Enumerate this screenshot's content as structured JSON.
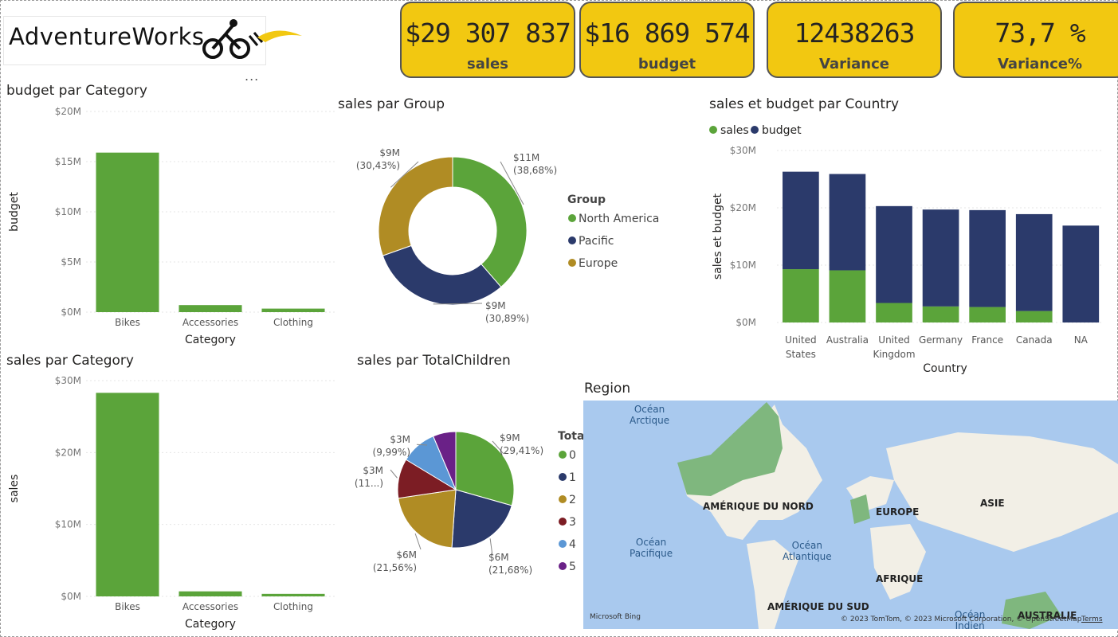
{
  "logo": {
    "text": "AdventureWorks",
    "menu": "..."
  },
  "kpis": [
    {
      "value": "$29 307 837",
      "label": "sales"
    },
    {
      "value": "$16 869 574",
      "label": "budget"
    },
    {
      "value": "12438263",
      "label": "Variance"
    },
    {
      "value": "73,7 %",
      "label": "Variance%"
    }
  ],
  "colors": {
    "green": "#5ba43a",
    "navy": "#2b3a6b",
    "gold": "#b08c24",
    "maroon": "#7c1d24",
    "lightblue": "#5b97d5",
    "purple": "#6a2187",
    "kpi": "#f2c811"
  },
  "titles": {
    "budget_cat": "budget par Category",
    "sales_group": "sales par Group",
    "sales_budget_country": "sales et budget par Country",
    "sales_cat": "sales par Category",
    "sales_children": "sales par TotalChildren",
    "region": "Region"
  },
  "chart_data": [
    {
      "type": "bar",
      "title": "budget par Category",
      "categories": [
        "Bikes",
        "Accessories",
        "Clothing"
      ],
      "values": [
        15.9,
        0.7,
        0.35
      ],
      "xlabel": "Category",
      "ylabel": "budget",
      "ylim": [
        0,
        20
      ],
      "ticks": [
        "$0M",
        "$5M",
        "$10M",
        "$15M",
        "$20M"
      ],
      "tick_values": [
        0,
        5,
        10,
        15,
        20
      ]
    },
    {
      "type": "pie",
      "title": "sales par Group",
      "donut": true,
      "legend_title": "Group",
      "labels": [
        "North America",
        "Pacific",
        "Europe"
      ],
      "values": [
        38.68,
        30.89,
        30.43
      ],
      "data_labels": [
        [
          "$11M",
          "(38,68%)"
        ],
        [
          "$9M",
          "(30,89%)"
        ],
        [
          "$9M",
          "(30,43%)"
        ]
      ]
    },
    {
      "type": "bar",
      "stacked": true,
      "title": "sales et budget par Country",
      "categories": [
        [
          "United",
          "States"
        ],
        [
          "Australia"
        ],
        [
          "United",
          "Kingdom"
        ],
        [
          "Germany"
        ],
        [
          "France"
        ],
        [
          "Canada"
        ],
        [
          "NA"
        ]
      ],
      "series": [
        {
          "name": "sales",
          "values": [
            9.3,
            9.1,
            3.4,
            2.8,
            2.7,
            2.0,
            0
          ]
        },
        {
          "name": "budget",
          "values": [
            17.0,
            16.8,
            16.9,
            16.9,
            16.9,
            16.9,
            16.9
          ]
        }
      ],
      "xlabel": "Country",
      "ylabel": "sales et budget",
      "ylim": [
        0,
        30
      ],
      "ticks": [
        "$0M",
        "$10M",
        "$20M",
        "$30M"
      ],
      "tick_values": [
        0,
        10,
        20,
        30
      ]
    },
    {
      "type": "bar",
      "title": "sales par Category",
      "categories": [
        "Bikes",
        "Accessories",
        "Clothing"
      ],
      "values": [
        28.3,
        0.7,
        0.35
      ],
      "xlabel": "Category",
      "ylabel": "sales",
      "ylim": [
        0,
        30
      ],
      "ticks": [
        "$0M",
        "$10M",
        "$20M",
        "$30M"
      ],
      "tick_values": [
        0,
        10,
        20,
        30
      ]
    },
    {
      "type": "pie",
      "title": "sales par TotalChildren",
      "legend_title": "Tota",
      "labels": [
        "0",
        "1",
        "2",
        "3",
        "4",
        "5"
      ],
      "values": [
        29.41,
        21.68,
        21.56,
        11.0,
        9.99,
        6.36
      ],
      "data_labels": [
        [
          "$9M",
          "(29,41%)"
        ],
        [
          "$6M",
          "(21,68%)"
        ],
        [
          "$6M",
          "(21,56%)"
        ],
        [
          "$3M",
          "(11...)"
        ],
        [
          "$3M",
          "(9,99%)"
        ],
        [
          "",
          ""
        ]
      ]
    }
  ],
  "map": {
    "labels": {
      "arctic": "Océan\nArctique",
      "pacific": "Océan\nPacifique",
      "atlantic": "Océan\nAtlantique",
      "indian": "Océan\nIndien",
      "north_america": "AMÉRIQUE DU NORD",
      "europe": "EUROPE",
      "asia": "ASIE",
      "africa": "AFRIQUE",
      "south_america": "AMÉRIQUE DU SUD",
      "australia": "AUSTRALIE"
    },
    "bing": "Microsoft Bing",
    "copyright": "© 2023 TomTom, © 2023 Microsoft Corporation, © OpenStreetMap",
    "terms": "Terms"
  }
}
